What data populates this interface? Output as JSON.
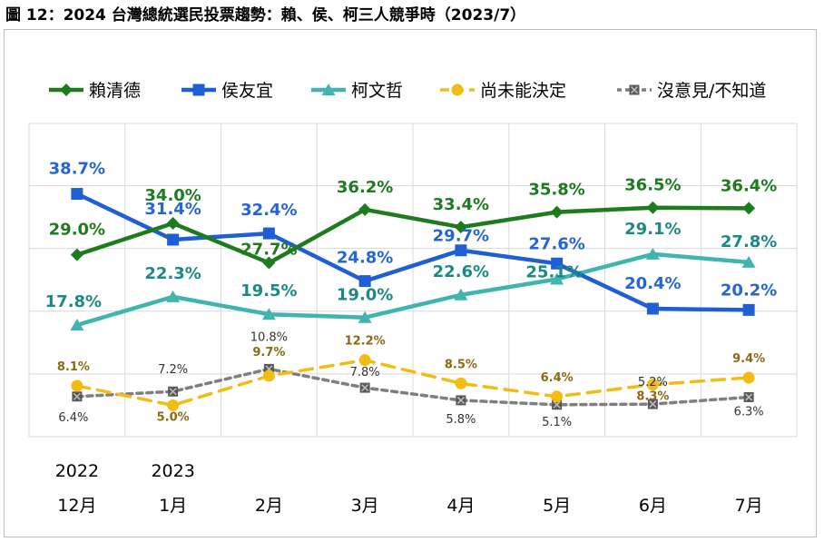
{
  "title": "圖 12：2024 台灣總統選民投票趨勢：賴、侯、柯三人競爭時（2023/7）",
  "chart_data": {
    "type": "line",
    "title": "圖 12：2024 台灣總統選民投票趨勢：賴、侯、柯三人競爭時（2023/7）",
    "categories": [
      "12月",
      "1月",
      "2月",
      "3月",
      "4月",
      "5月",
      "6月",
      "7月"
    ],
    "year_labels": [
      "2022",
      "2023",
      "",
      "",
      "",
      "",
      "",
      ""
    ],
    "ylim": [
      0,
      45
    ],
    "grid": true,
    "legend_position": "top",
    "series": [
      {
        "name": "賴清德",
        "color": "#1e7b1e",
        "marker": "diamond",
        "dash": false,
        "label_color": "#1e7b1e",
        "label_size": "large",
        "values": [
          29.0,
          34.0,
          27.7,
          36.2,
          33.4,
          35.8,
          36.5,
          36.4
        ],
        "labels": [
          "29.0%",
          "34.0%",
          "27.7%",
          "36.2%",
          "33.4%",
          "35.8%",
          "36.5%",
          "36.4%"
        ]
      },
      {
        "name": "侯友宜",
        "color": "#1f5fd6",
        "marker": "square",
        "dash": false,
        "label_color": "#2565d8",
        "label_size": "large",
        "values": [
          38.7,
          31.4,
          32.4,
          24.8,
          29.7,
          27.6,
          20.4,
          20.2
        ],
        "labels": [
          "38.7%",
          "31.4%",
          "32.4%",
          "24.8%",
          "29.7%",
          "27.6%",
          "20.4%",
          "20.2%"
        ]
      },
      {
        "name": "柯文哲",
        "color": "#40b5b0",
        "marker": "triangle",
        "dash": false,
        "label_color": "#1b8a85",
        "label_size": "large",
        "values": [
          17.8,
          22.3,
          19.5,
          19.0,
          22.6,
          25.1,
          29.1,
          27.8
        ],
        "labels": [
          "17.8%",
          "22.3%",
          "19.5%",
          "19.0%",
          "22.6%",
          "25.1%",
          "29.1%",
          "27.8%"
        ]
      },
      {
        "name": "尚未能決定",
        "color": "#f2bd12",
        "marker": "circle",
        "dash": true,
        "label_color": "#8a6a12",
        "label_size": "small",
        "values": [
          8.1,
          5.0,
          9.7,
          12.2,
          8.5,
          6.4,
          8.3,
          9.4
        ],
        "labels": [
          "8.1%",
          "5.0%",
          "9.7%",
          "12.2%",
          "8.5%",
          "6.4%",
          "8.3%",
          "9.4%"
        ]
      },
      {
        "name": "沒意見/不知道",
        "color": "#7f7f7f",
        "marker": "x-square",
        "dash": true,
        "label_color": "#333333",
        "label_size": "small",
        "values": [
          6.4,
          7.2,
          10.8,
          7.8,
          5.8,
          5.1,
          5.2,
          6.3
        ],
        "labels": [
          "6.4%",
          "7.2%",
          "10.8%",
          "7.8%",
          "5.8%",
          "5.1%",
          "5.2%",
          "6.3%"
        ]
      }
    ]
  }
}
